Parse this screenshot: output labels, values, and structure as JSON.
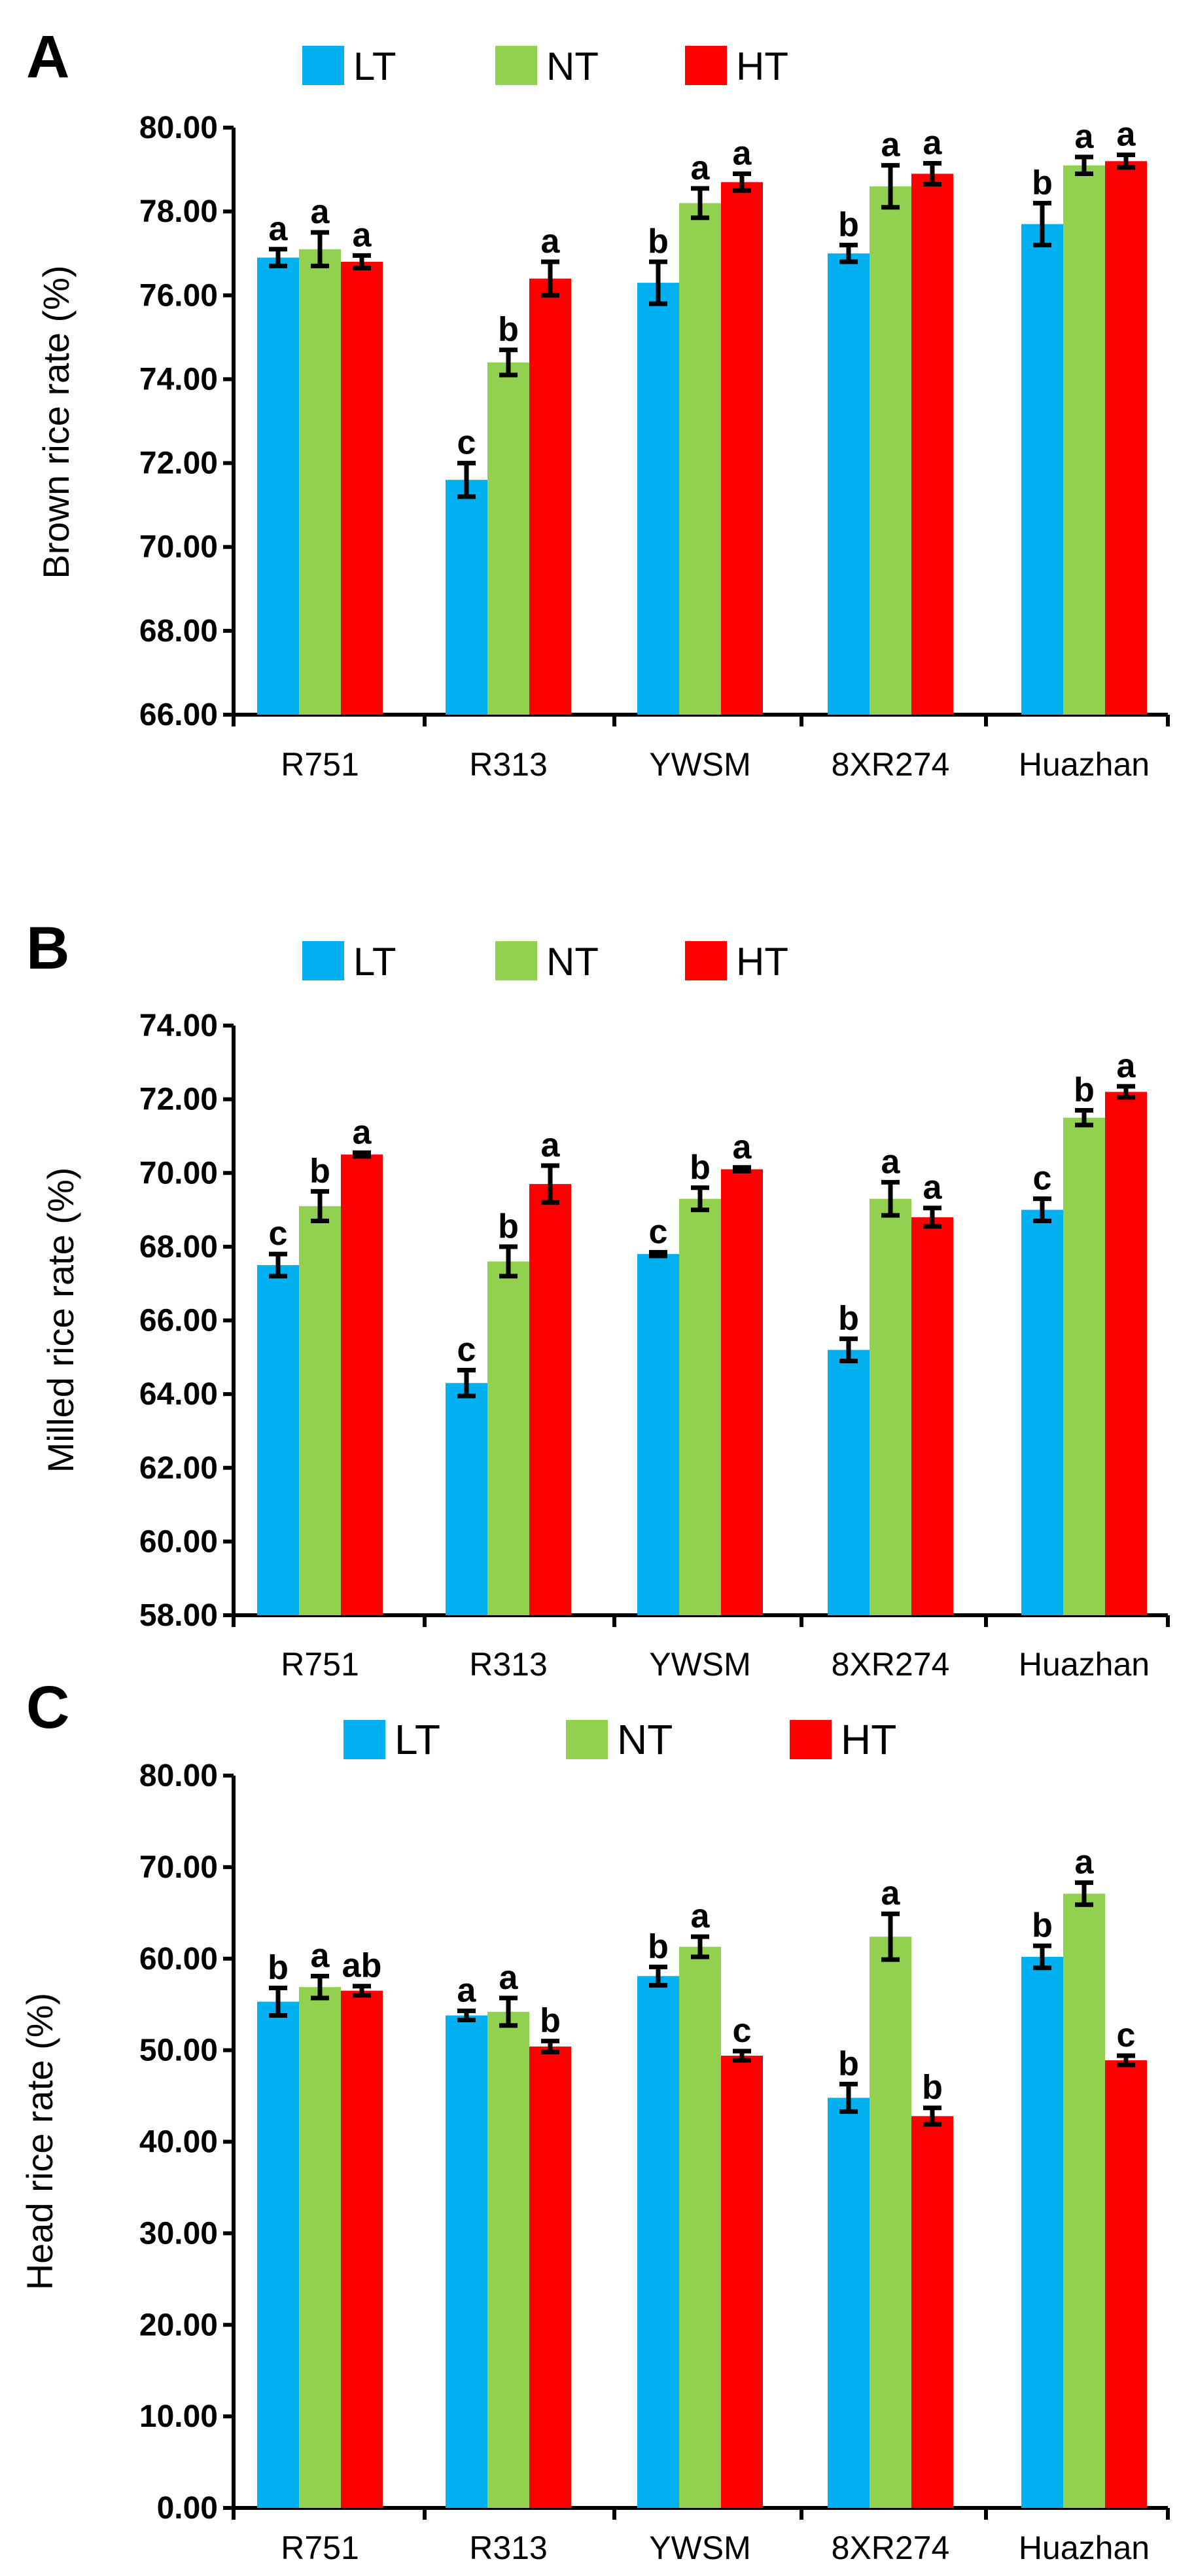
{
  "colors": {
    "LT": "#00B0F0",
    "NT": "#92D050",
    "HT": "#FF0000",
    "axis": "#000000"
  },
  "chart_data": [
    {
      "panel": "A",
      "type": "bar",
      "ylabel": "Brown rice rate (%)",
      "ylim": [
        66,
        80
      ],
      "yticks": [
        "66.00",
        "68.00",
        "70.00",
        "72.00",
        "74.00",
        "76.00",
        "78.00",
        "80.00"
      ],
      "legend": [
        "LT",
        "NT",
        "HT"
      ],
      "categories": [
        "R751",
        "R313",
        "YWSM",
        "8XR274",
        "Huazhan"
      ],
      "series": [
        {
          "name": "LT",
          "values": [
            76.9,
            71.6,
            76.3,
            77.0,
            77.7
          ],
          "errors": [
            0.2,
            0.4,
            0.5,
            0.2,
            0.5
          ],
          "letters": [
            "a",
            "c",
            "b",
            "b",
            "b"
          ]
        },
        {
          "name": "NT",
          "values": [
            77.1,
            74.4,
            78.2,
            78.6,
            79.1
          ],
          "errors": [
            0.4,
            0.3,
            0.35,
            0.5,
            0.2
          ],
          "letters": [
            "a",
            "b",
            "a",
            "a",
            "a"
          ]
        },
        {
          "name": "HT",
          "values": [
            76.8,
            76.4,
            78.7,
            78.9,
            79.2
          ],
          "errors": [
            0.15,
            0.4,
            0.2,
            0.25,
            0.15
          ],
          "letters": [
            "a",
            "a",
            "a",
            "a",
            "a"
          ]
        }
      ]
    },
    {
      "panel": "B",
      "type": "bar",
      "ylabel": "Milled rice rate (%)",
      "ylim": [
        58,
        74
      ],
      "yticks": [
        "58.00",
        "60.00",
        "62.00",
        "64.00",
        "66.00",
        "68.00",
        "70.00",
        "72.00",
        "74.00"
      ],
      "legend": [
        "LT",
        "NT",
        "HT"
      ],
      "categories": [
        "R751",
        "R313",
        "YWSM",
        "8XR274",
        "Huazhan"
      ],
      "series": [
        {
          "name": "LT",
          "values": [
            67.5,
            64.3,
            67.8,
            65.2,
            69.0
          ],
          "errors": [
            0.3,
            0.35,
            0.05,
            0.3,
            0.3
          ],
          "letters": [
            "c",
            "c",
            "c",
            "b",
            "c"
          ]
        },
        {
          "name": "NT",
          "values": [
            69.1,
            67.6,
            69.3,
            69.3,
            71.5
          ],
          "errors": [
            0.4,
            0.4,
            0.3,
            0.45,
            0.2
          ],
          "letters": [
            "b",
            "b",
            "b",
            "a",
            "b"
          ]
        },
        {
          "name": "HT",
          "values": [
            70.5,
            69.7,
            70.1,
            68.8,
            72.2
          ],
          "errors": [
            0.05,
            0.5,
            0.05,
            0.25,
            0.15
          ],
          "letters": [
            "a",
            "a",
            "a",
            "a",
            "a"
          ]
        }
      ]
    },
    {
      "panel": "C",
      "type": "bar",
      "ylabel": "Head rice rate (%)",
      "ylim": [
        0,
        80
      ],
      "yticks": [
        "0.00",
        "10.00",
        "20.00",
        "30.00",
        "40.00",
        "50.00",
        "60.00",
        "70.00",
        "80.00"
      ],
      "legend": [
        "LT",
        "NT",
        "HT"
      ],
      "categories": [
        "R751",
        "R313",
        "YWSM",
        "8XR274",
        "Huazhan"
      ],
      "series": [
        {
          "name": "LT",
          "values": [
            55.3,
            53.8,
            58.1,
            44.8,
            60.2
          ],
          "errors": [
            1.5,
            0.5,
            1.0,
            1.5,
            1.2
          ],
          "letters": [
            "b",
            "a",
            "b",
            "b",
            "b"
          ]
        },
        {
          "name": "NT",
          "values": [
            56.9,
            54.2,
            61.3,
            62.4,
            67.1
          ],
          "errors": [
            1.2,
            1.5,
            1.1,
            2.5,
            1.2
          ],
          "letters": [
            "a",
            "a",
            "a",
            "a",
            "a"
          ]
        },
        {
          "name": "HT",
          "values": [
            56.5,
            50.4,
            49.4,
            42.8,
            48.9
          ],
          "errors": [
            0.5,
            0.6,
            0.5,
            0.9,
            0.5
          ],
          "letters": [
            "ab",
            "b",
            "c",
            "b",
            "c"
          ]
        }
      ]
    }
  ]
}
